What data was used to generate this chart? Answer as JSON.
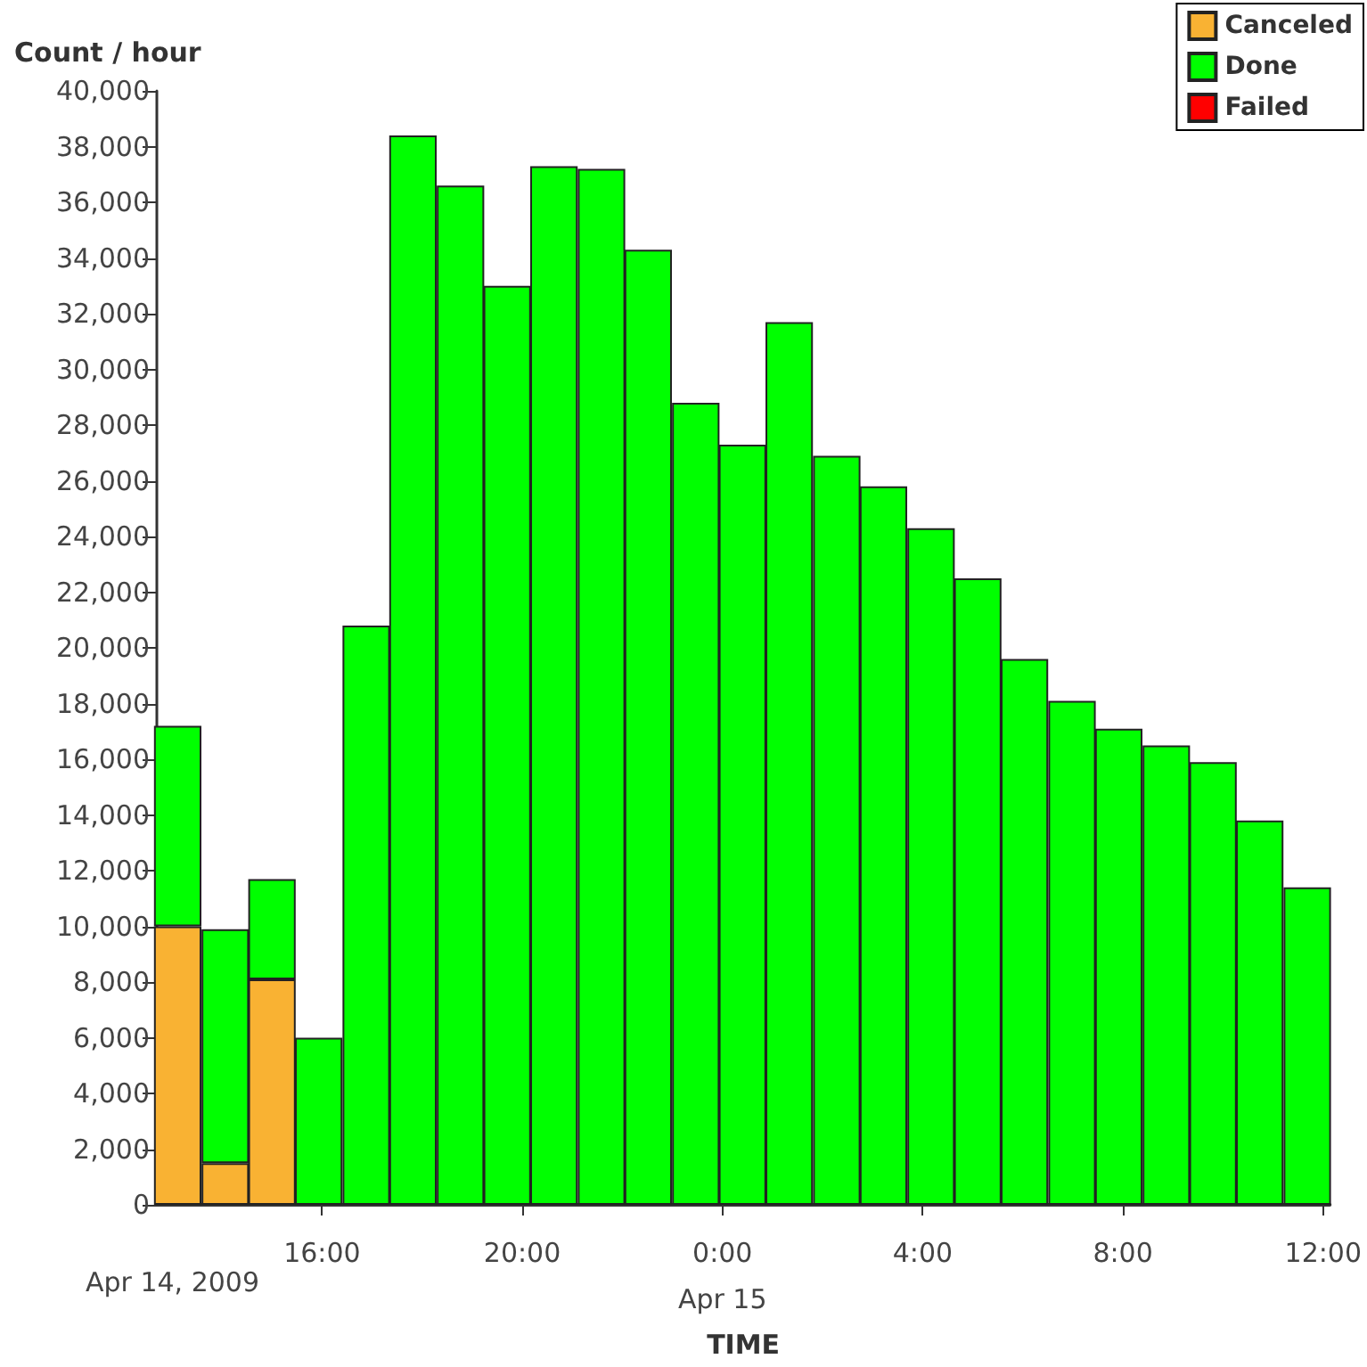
{
  "chart_data": {
    "type": "bar",
    "stacked": true,
    "xlabel": "TIME",
    "ylabel": "Count / hour",
    "x": [
      "2009-04-14T13:07",
      "2009-04-14T14:04",
      "2009-04-14T15:00",
      "2009-04-14T15:56",
      "2009-04-14T16:53",
      "2009-04-14T17:49",
      "2009-04-14T18:46",
      "2009-04-14T19:42",
      "2009-04-14T20:38",
      "2009-04-14T21:35",
      "2009-04-14T22:31",
      "2009-04-14T23:28",
      "2009-04-15T00:24",
      "2009-04-15T01:20",
      "2009-04-15T02:17",
      "2009-04-15T03:13",
      "2009-04-15T04:10",
      "2009-04-15T05:06",
      "2009-04-15T06:02",
      "2009-04-15T06:59",
      "2009-04-15T07:55",
      "2009-04-15T08:52",
      "2009-04-15T09:48",
      "2009-04-15T10:44",
      "2009-04-15T11:41"
    ],
    "series": [
      {
        "name": "Canceled",
        "color": "#f9b233",
        "values": [
          10000,
          1500,
          8100,
          0,
          0,
          0,
          0,
          0,
          0,
          0,
          0,
          0,
          0,
          0,
          0,
          0,
          0,
          0,
          0,
          0,
          0,
          0,
          0,
          0,
          0
        ]
      },
      {
        "name": "Done",
        "color": "#00ff00",
        "values": [
          7200,
          8400,
          3600,
          6000,
          20800,
          38400,
          36600,
          33000,
          37300,
          37200,
          34300,
          28800,
          27300,
          31700,
          26900,
          25800,
          24300,
          22500,
          19600,
          18100,
          17100,
          16500,
          15900,
          13800,
          11400
        ]
      },
      {
        "name": "Failed",
        "color": "#ff0000",
        "values": [
          0,
          0,
          0,
          0,
          0,
          0,
          0,
          0,
          0,
          0,
          0,
          0,
          0,
          0,
          0,
          0,
          0,
          0,
          0,
          0,
          0,
          0,
          0,
          0,
          0
        ]
      }
    ],
    "xlim": [
      "2009-04-14T12:42",
      "2009-04-15T12:08"
    ],
    "xticks": [
      {
        "value": "2009-04-14T16:00",
        "label": "16:00"
      },
      {
        "value": "2009-04-14T20:00",
        "label": "20:00"
      },
      {
        "value": "2009-04-15T00:00",
        "label": "0:00\nApr 15"
      },
      {
        "value": "2009-04-15T04:00",
        "label": "4:00"
      },
      {
        "value": "2009-04-15T08:00",
        "label": "8:00"
      },
      {
        "value": "2009-04-15T12:00",
        "label": "12:00"
      }
    ],
    "ylim": [
      0,
      40000
    ],
    "yticks": [
      0,
      {
        "value": 2000,
        "label": "2,000"
      },
      {
        "value": 4000,
        "label": "4,000"
      },
      {
        "value": 6000,
        "label": "6,000"
      },
      {
        "value": 8000,
        "label": "8,000"
      },
      {
        "value": 10000,
        "label": "10,000"
      },
      {
        "value": 12000,
        "label": "12,000"
      },
      {
        "value": 14000,
        "label": "14,000"
      },
      {
        "value": 16000,
        "label": "16,000"
      },
      {
        "value": 18000,
        "label": "18,000"
      },
      {
        "value": 20000,
        "label": "20,000"
      },
      {
        "value": 22000,
        "label": "22,000"
      },
      {
        "value": 24000,
        "label": "24,000"
      },
      {
        "value": 26000,
        "label": "26,000"
      },
      {
        "value": 28000,
        "label": "28,000"
      },
      {
        "value": 30000,
        "label": "30,000"
      },
      {
        "value": 32000,
        "label": "32,000"
      },
      {
        "value": 34000,
        "label": "34,000"
      },
      {
        "value": 36000,
        "label": "36,000"
      },
      {
        "value": 38000,
        "label": "38,000"
      },
      {
        "value": 40000,
        "label": "40,000"
      }
    ],
    "annotations": [
      "Apr 14, 2009"
    ],
    "legend": "top right",
    "grid": false
  }
}
